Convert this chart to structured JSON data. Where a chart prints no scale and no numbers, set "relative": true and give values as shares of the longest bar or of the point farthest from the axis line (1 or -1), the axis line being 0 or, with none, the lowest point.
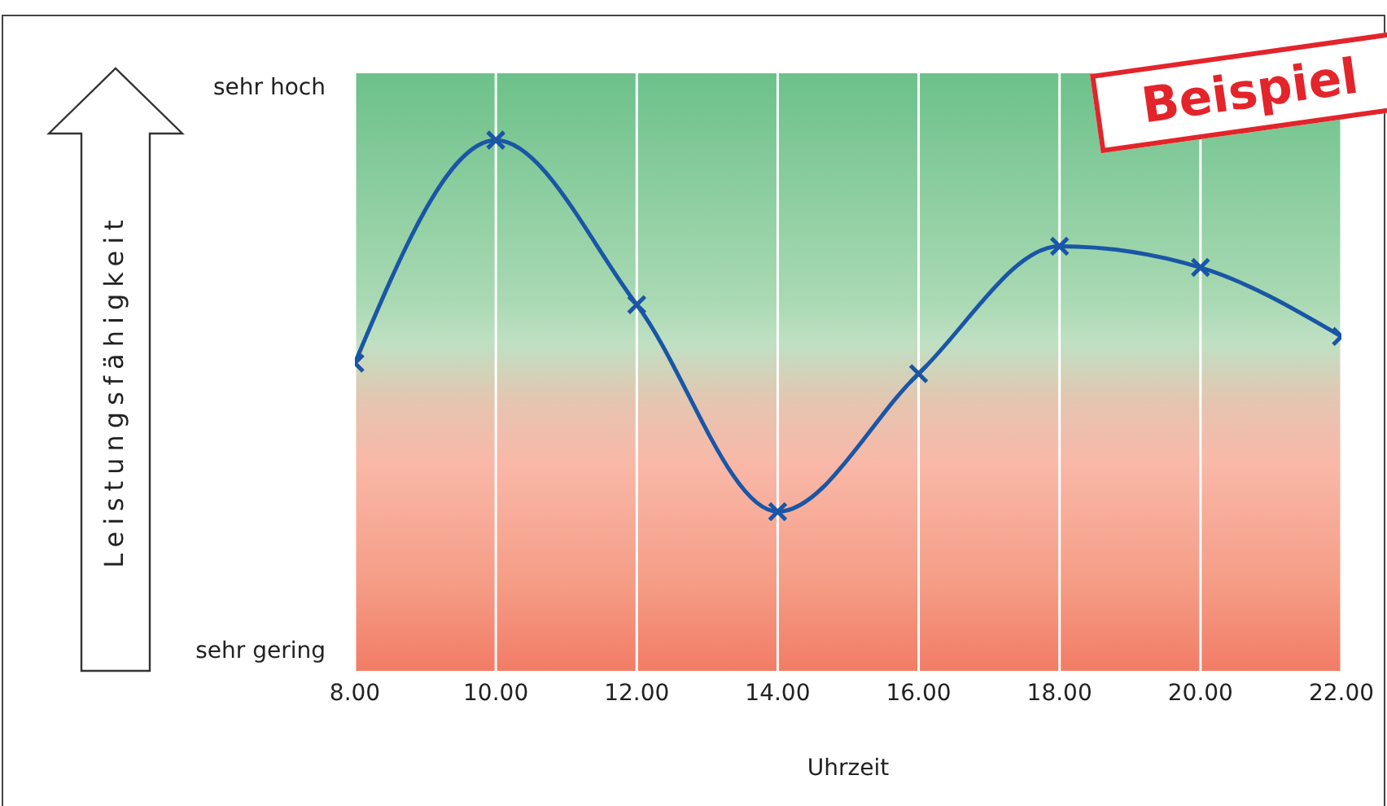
{
  "chart_data": {
    "type": "line",
    "xlabel": "Uhrzeit",
    "relative": true,
    "x": [
      8,
      10,
      12,
      14,
      16,
      18,
      20,
      22
    ],
    "series": [
      {
        "color": "#1a56a5",
        "values": [
          0.58,
          1,
          0.69,
          0.3,
          0.56,
          0.8,
          0.76,
          0.63
        ]
      }
    ],
    "xlim": [
      8,
      22
    ],
    "xticks": [
      {
        "value": 8,
        "label": "8.00"
      },
      {
        "value": 10,
        "label": "10.00"
      },
      {
        "value": 12,
        "label": "12.00"
      },
      {
        "value": 14,
        "label": "14.00"
      },
      {
        "value": 16,
        "label": "16.00"
      },
      {
        "value": 18,
        "label": "18.00"
      },
      {
        "value": 20,
        "label": "20.00"
      },
      {
        "value": 22,
        "label": "22.00"
      }
    ],
    "grid": "x",
    "marker": "cross",
    "line_style": "solid",
    "legend": false,
    "annotations": [
      "Beispiel",
      "sehr hoch",
      "sehr gering",
      "Leistungsfähigkeit"
    ]
  }
}
